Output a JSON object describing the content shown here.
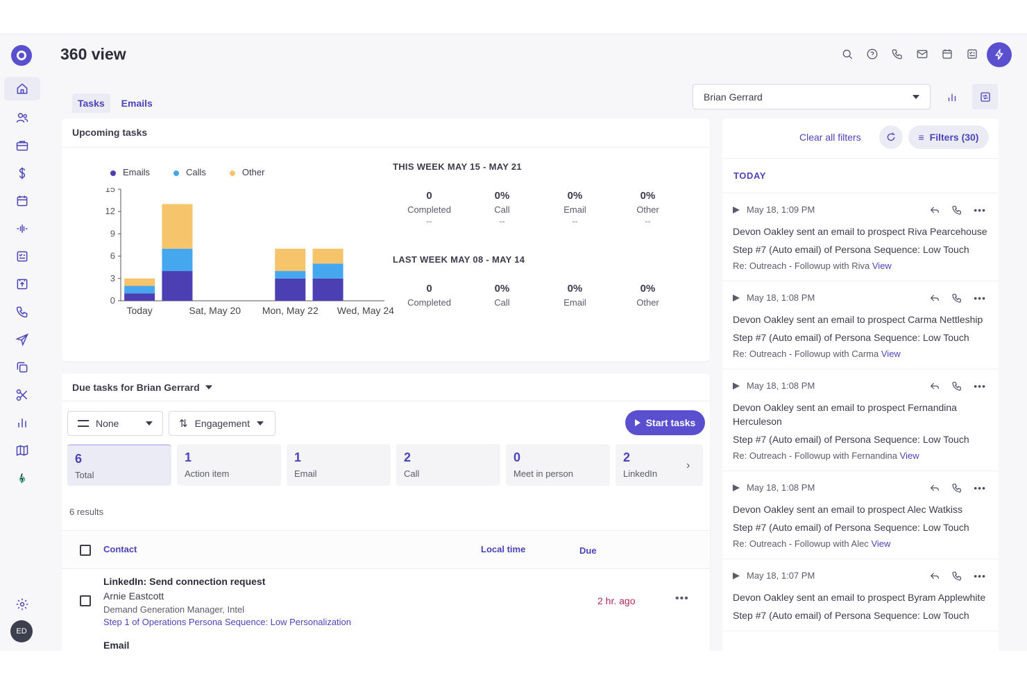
{
  "header": {
    "title": "360 view"
  },
  "tabs": [
    {
      "label": "Tasks"
    },
    {
      "label": "Emails"
    }
  ],
  "upcoming": {
    "title": "Upcoming tasks",
    "legend": [
      {
        "label": "Emails",
        "color": "#4b3fb3"
      },
      {
        "label": "Calls",
        "color": "#45a8ef"
      },
      {
        "label": "Other",
        "color": "#f6c46b"
      }
    ],
    "this_week": {
      "title": "THIS WEEK MAY 15 - MAY 21",
      "stats": [
        {
          "value": "0",
          "label": "Completed",
          "delta": "--"
        },
        {
          "value": "0%",
          "label": "Call",
          "delta": "--"
        },
        {
          "value": "0%",
          "label": "Email",
          "delta": "--"
        },
        {
          "value": "0%",
          "label": "Other",
          "delta": "--"
        }
      ]
    },
    "last_week": {
      "title": "LAST WEEK MAY 08 - MAY 14",
      "stats": [
        {
          "value": "0",
          "label": "Completed"
        },
        {
          "value": "0%",
          "label": "Call"
        },
        {
          "value": "0%",
          "label": "Email"
        },
        {
          "value": "0%",
          "label": "Other"
        }
      ]
    }
  },
  "chart_data": {
    "type": "bar",
    "stacked": true,
    "categories": [
      "Today",
      "",
      "Sat, May 20",
      "",
      "Mon, May 22",
      "",
      "Wed, May 24"
    ],
    "x_tick_labels": [
      "Today",
      "Sat, May 20",
      "Mon, May 22",
      "Wed, May 24"
    ],
    "series": [
      {
        "name": "Emails",
        "color": "#4b3fb3",
        "values": [
          1,
          4,
          0,
          0,
          3,
          3,
          0
        ]
      },
      {
        "name": "Calls",
        "color": "#45a8ef",
        "values": [
          1,
          3,
          0,
          0,
          1,
          2,
          0
        ]
      },
      {
        "name": "Other",
        "color": "#f6c46b",
        "values": [
          1,
          6,
          0,
          0,
          3,
          2,
          0
        ]
      }
    ],
    "yticks": [
      0,
      3,
      6,
      9,
      12,
      15
    ],
    "ylim": [
      0,
      15
    ]
  },
  "due": {
    "title": "Due tasks for Brian Gerrard",
    "group_select": "None",
    "sort_select": "Engagement",
    "start_button": "Start tasks",
    "kpis": [
      {
        "count": "6",
        "label": "Total"
      },
      {
        "count": "1",
        "label": "Action item"
      },
      {
        "count": "1",
        "label": "Email"
      },
      {
        "count": "2",
        "label": "Call"
      },
      {
        "count": "0",
        "label": "Meet in person"
      },
      {
        "count": "2",
        "label": "LinkedIn"
      }
    ],
    "results": "6 results",
    "columns": {
      "contact": "Contact",
      "local_time": "Local time",
      "due": "Due"
    },
    "rows": [
      {
        "title": "LinkedIn: Send connection request",
        "name": "Arnie Eastcott",
        "role": "Demand Generation Manager, Intel",
        "step": "Step 1 of Operations Persona Sequence: Low Personalization",
        "due": "2 hr. ago"
      }
    ],
    "next_row_title": "Email"
  },
  "right": {
    "owner": "Brian Gerrard",
    "clear_filters": "Clear all filters",
    "filters_button": "Filters (30)",
    "section": "TODAY",
    "activities": [
      {
        "time": "May 18, 1:09 PM",
        "text": "Devon Oakley sent an email to prospect Riva Pearcehouse",
        "step": "Step #7 (Auto email) of Persona Sequence: Low Touch",
        "subject": "Re: Outreach - Followup with Riva",
        "view": "View"
      },
      {
        "time": "May 18, 1:08 PM",
        "text": "Devon Oakley sent an email to prospect Carma Nettleship",
        "step": "Step #7 (Auto email) of Persona Sequence: Low Touch",
        "subject": "Re: Outreach - Followup with Carma",
        "view": "View"
      },
      {
        "time": "May 18, 1:08 PM",
        "text": "Devon Oakley sent an email to prospect Fernandina Herculeson",
        "step": "Step #7 (Auto email) of Persona Sequence: Low Touch",
        "subject": "Re: Outreach - Followup with Fernandina",
        "view": "View"
      },
      {
        "time": "May 18, 1:08 PM",
        "text": "Devon Oakley sent an email to prospect Alec Watkiss",
        "step": "Step #7 (Auto email) of Persona Sequence: Low Touch",
        "subject": "Re: Outreach - Followup with Alec",
        "view": "View"
      },
      {
        "time": "May 18, 1:07 PM",
        "text": "Devon Oakley sent an email to prospect Byram Applewhite",
        "step": "Step #7 (Auto email) of Persona Sequence: Low Touch",
        "subject": "",
        "view": ""
      }
    ]
  },
  "user": {
    "initials": "ED"
  }
}
